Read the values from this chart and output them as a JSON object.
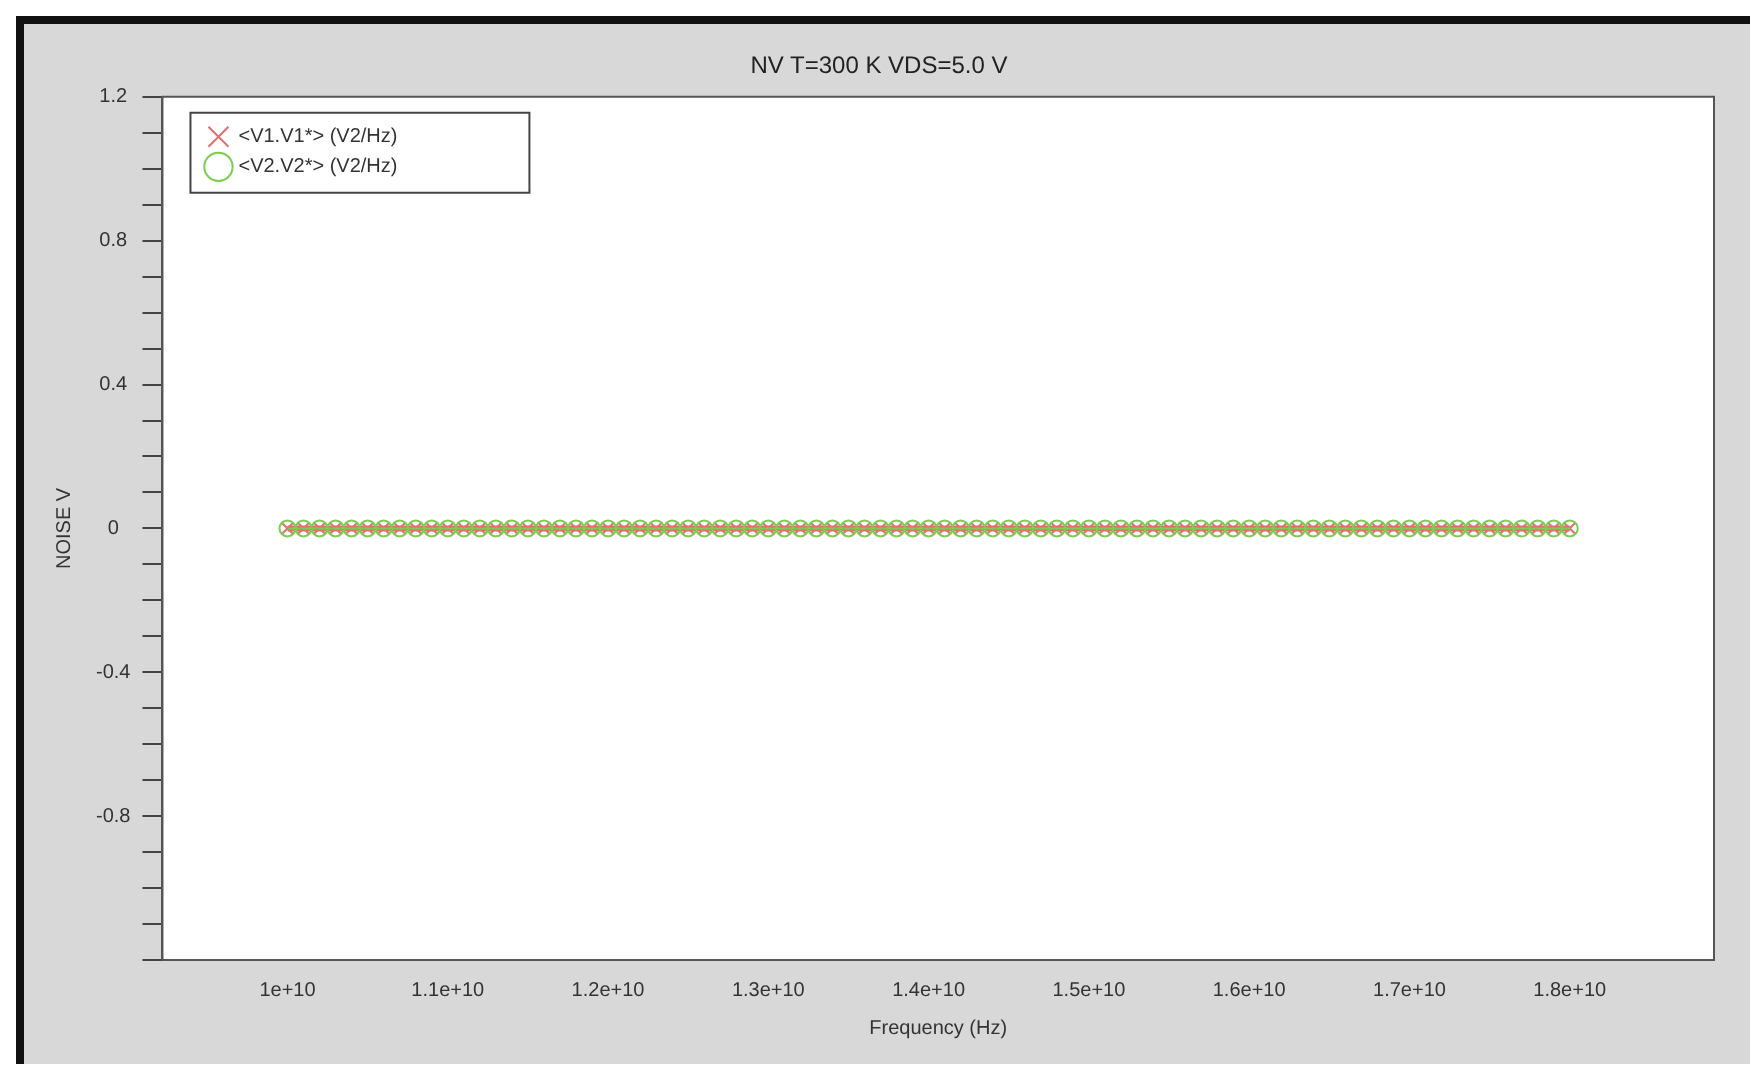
{
  "chart_data": {
    "type": "line",
    "title": "NV T=300 K VDS=5.0 V",
    "xlabel": "Frequency (Hz)",
    "ylabel": "NOISE V",
    "x": [
      10000000000,
      10100000000,
      10200000000,
      10300000000,
      10400000000,
      10500000000,
      10600000000,
      10700000000,
      10800000000,
      10900000000,
      11000000000,
      11100000000,
      11200000000,
      11300000000,
      11400000000,
      11500000000,
      11600000000,
      11700000000,
      11800000000,
      11900000000,
      12000000000,
      12100000000,
      12200000000,
      12300000000,
      12400000000,
      12500000000,
      12600000000,
      12700000000,
      12800000000,
      12900000000,
      13000000000,
      13100000000,
      13200000000,
      13300000000,
      13400000000,
      13500000000,
      13600000000,
      13700000000,
      13800000000,
      13900000000,
      14000000000,
      14100000000,
      14200000000,
      14300000000,
      14400000000,
      14500000000,
      14600000000,
      14700000000,
      14800000000,
      14900000000,
      15000000000,
      15100000000,
      15200000000,
      15300000000,
      15400000000,
      15500000000,
      15600000000,
      15700000000,
      15800000000,
      15900000000,
      16000000000,
      16100000000,
      16200000000,
      16300000000,
      16400000000,
      16500000000,
      16600000000,
      16700000000,
      16800000000,
      16900000000,
      17000000000,
      17100000000,
      17200000000,
      17300000000,
      17400000000,
      17500000000,
      17600000000,
      17700000000,
      17800000000,
      17900000000,
      18000000000
    ],
    "series": [
      {
        "name": "<V1.V1*> (V2/Hz)",
        "color": "#e07070",
        "marker": "cross",
        "values": [
          0,
          0,
          0,
          0,
          0,
          0,
          0,
          0,
          0,
          0,
          0,
          0,
          0,
          0,
          0,
          0,
          0,
          0,
          0,
          0,
          0,
          0,
          0,
          0,
          0,
          0,
          0,
          0,
          0,
          0,
          0,
          0,
          0,
          0,
          0,
          0,
          0,
          0,
          0,
          0,
          0,
          0,
          0,
          0,
          0,
          0,
          0,
          0,
          0,
          0,
          0,
          0,
          0,
          0,
          0,
          0,
          0,
          0,
          0,
          0,
          0,
          0,
          0,
          0,
          0,
          0,
          0,
          0,
          0,
          0,
          0,
          0,
          0,
          0,
          0,
          0,
          0,
          0,
          0,
          0,
          0
        ]
      },
      {
        "name": "<V2.V2*> (V2/Hz)",
        "color": "#7ccc50",
        "marker": "circle",
        "values": [
          0,
          0,
          0,
          0,
          0,
          0,
          0,
          0,
          0,
          0,
          0,
          0,
          0,
          0,
          0,
          0,
          0,
          0,
          0,
          0,
          0,
          0,
          0,
          0,
          0,
          0,
          0,
          0,
          0,
          0,
          0,
          0,
          0,
          0,
          0,
          0,
          0,
          0,
          0,
          0,
          0,
          0,
          0,
          0,
          0,
          0,
          0,
          0,
          0,
          0,
          0,
          0,
          0,
          0,
          0,
          0,
          0,
          0,
          0,
          0,
          0,
          0,
          0,
          0,
          0,
          0,
          0,
          0,
          0,
          0,
          0,
          0,
          0,
          0,
          0,
          0,
          0,
          0,
          0,
          0,
          0
        ]
      }
    ],
    "xlim": [
      9220000000,
      18900000000
    ],
    "xticks": [
      {
        "value": 10000000000,
        "label": "1e+10"
      },
      {
        "value": 11000000000,
        "label": "1.1e+10"
      },
      {
        "value": 12000000000,
        "label": "1.2e+10"
      },
      {
        "value": 13000000000,
        "label": "1.3e+10"
      },
      {
        "value": 14000000000,
        "label": "1.4e+10"
      },
      {
        "value": 15000000000,
        "label": "1.5e+10"
      },
      {
        "value": 16000000000,
        "label": "1.6e+10"
      },
      {
        "value": 17000000000,
        "label": "1.7e+10"
      },
      {
        "value": 18000000000,
        "label": "1.8e+10"
      }
    ],
    "ylim": [
      -1.2,
      1.2
    ],
    "yticks": [
      {
        "value": -1.2,
        "label": null
      },
      {
        "value": -1.1,
        "label": null
      },
      {
        "value": -1,
        "label": null
      },
      {
        "value": -0.9,
        "label": null
      },
      -0.8,
      {
        "value": -0.7,
        "label": null
      },
      {
        "value": -0.6,
        "label": null
      },
      {
        "value": -0.5,
        "label": null
      },
      -0.4,
      {
        "value": -0.3,
        "label": null
      },
      {
        "value": -0.2,
        "label": null
      },
      {
        "value": -0.1,
        "label": null
      },
      0,
      {
        "value": 0.1,
        "label": null
      },
      {
        "value": 0.2,
        "label": null
      },
      {
        "value": 0.3,
        "label": null
      },
      0.4,
      {
        "value": 0.5,
        "label": null
      },
      {
        "value": 0.6,
        "label": null
      },
      {
        "value": 0.7,
        "label": null
      },
      0.8,
      {
        "value": 0.9,
        "label": null
      },
      {
        "value": 1,
        "label": null
      },
      {
        "value": 1.1,
        "label": null
      },
      1.2
    ],
    "grid": false,
    "legend": "top left",
    "line_style": "solid"
  }
}
